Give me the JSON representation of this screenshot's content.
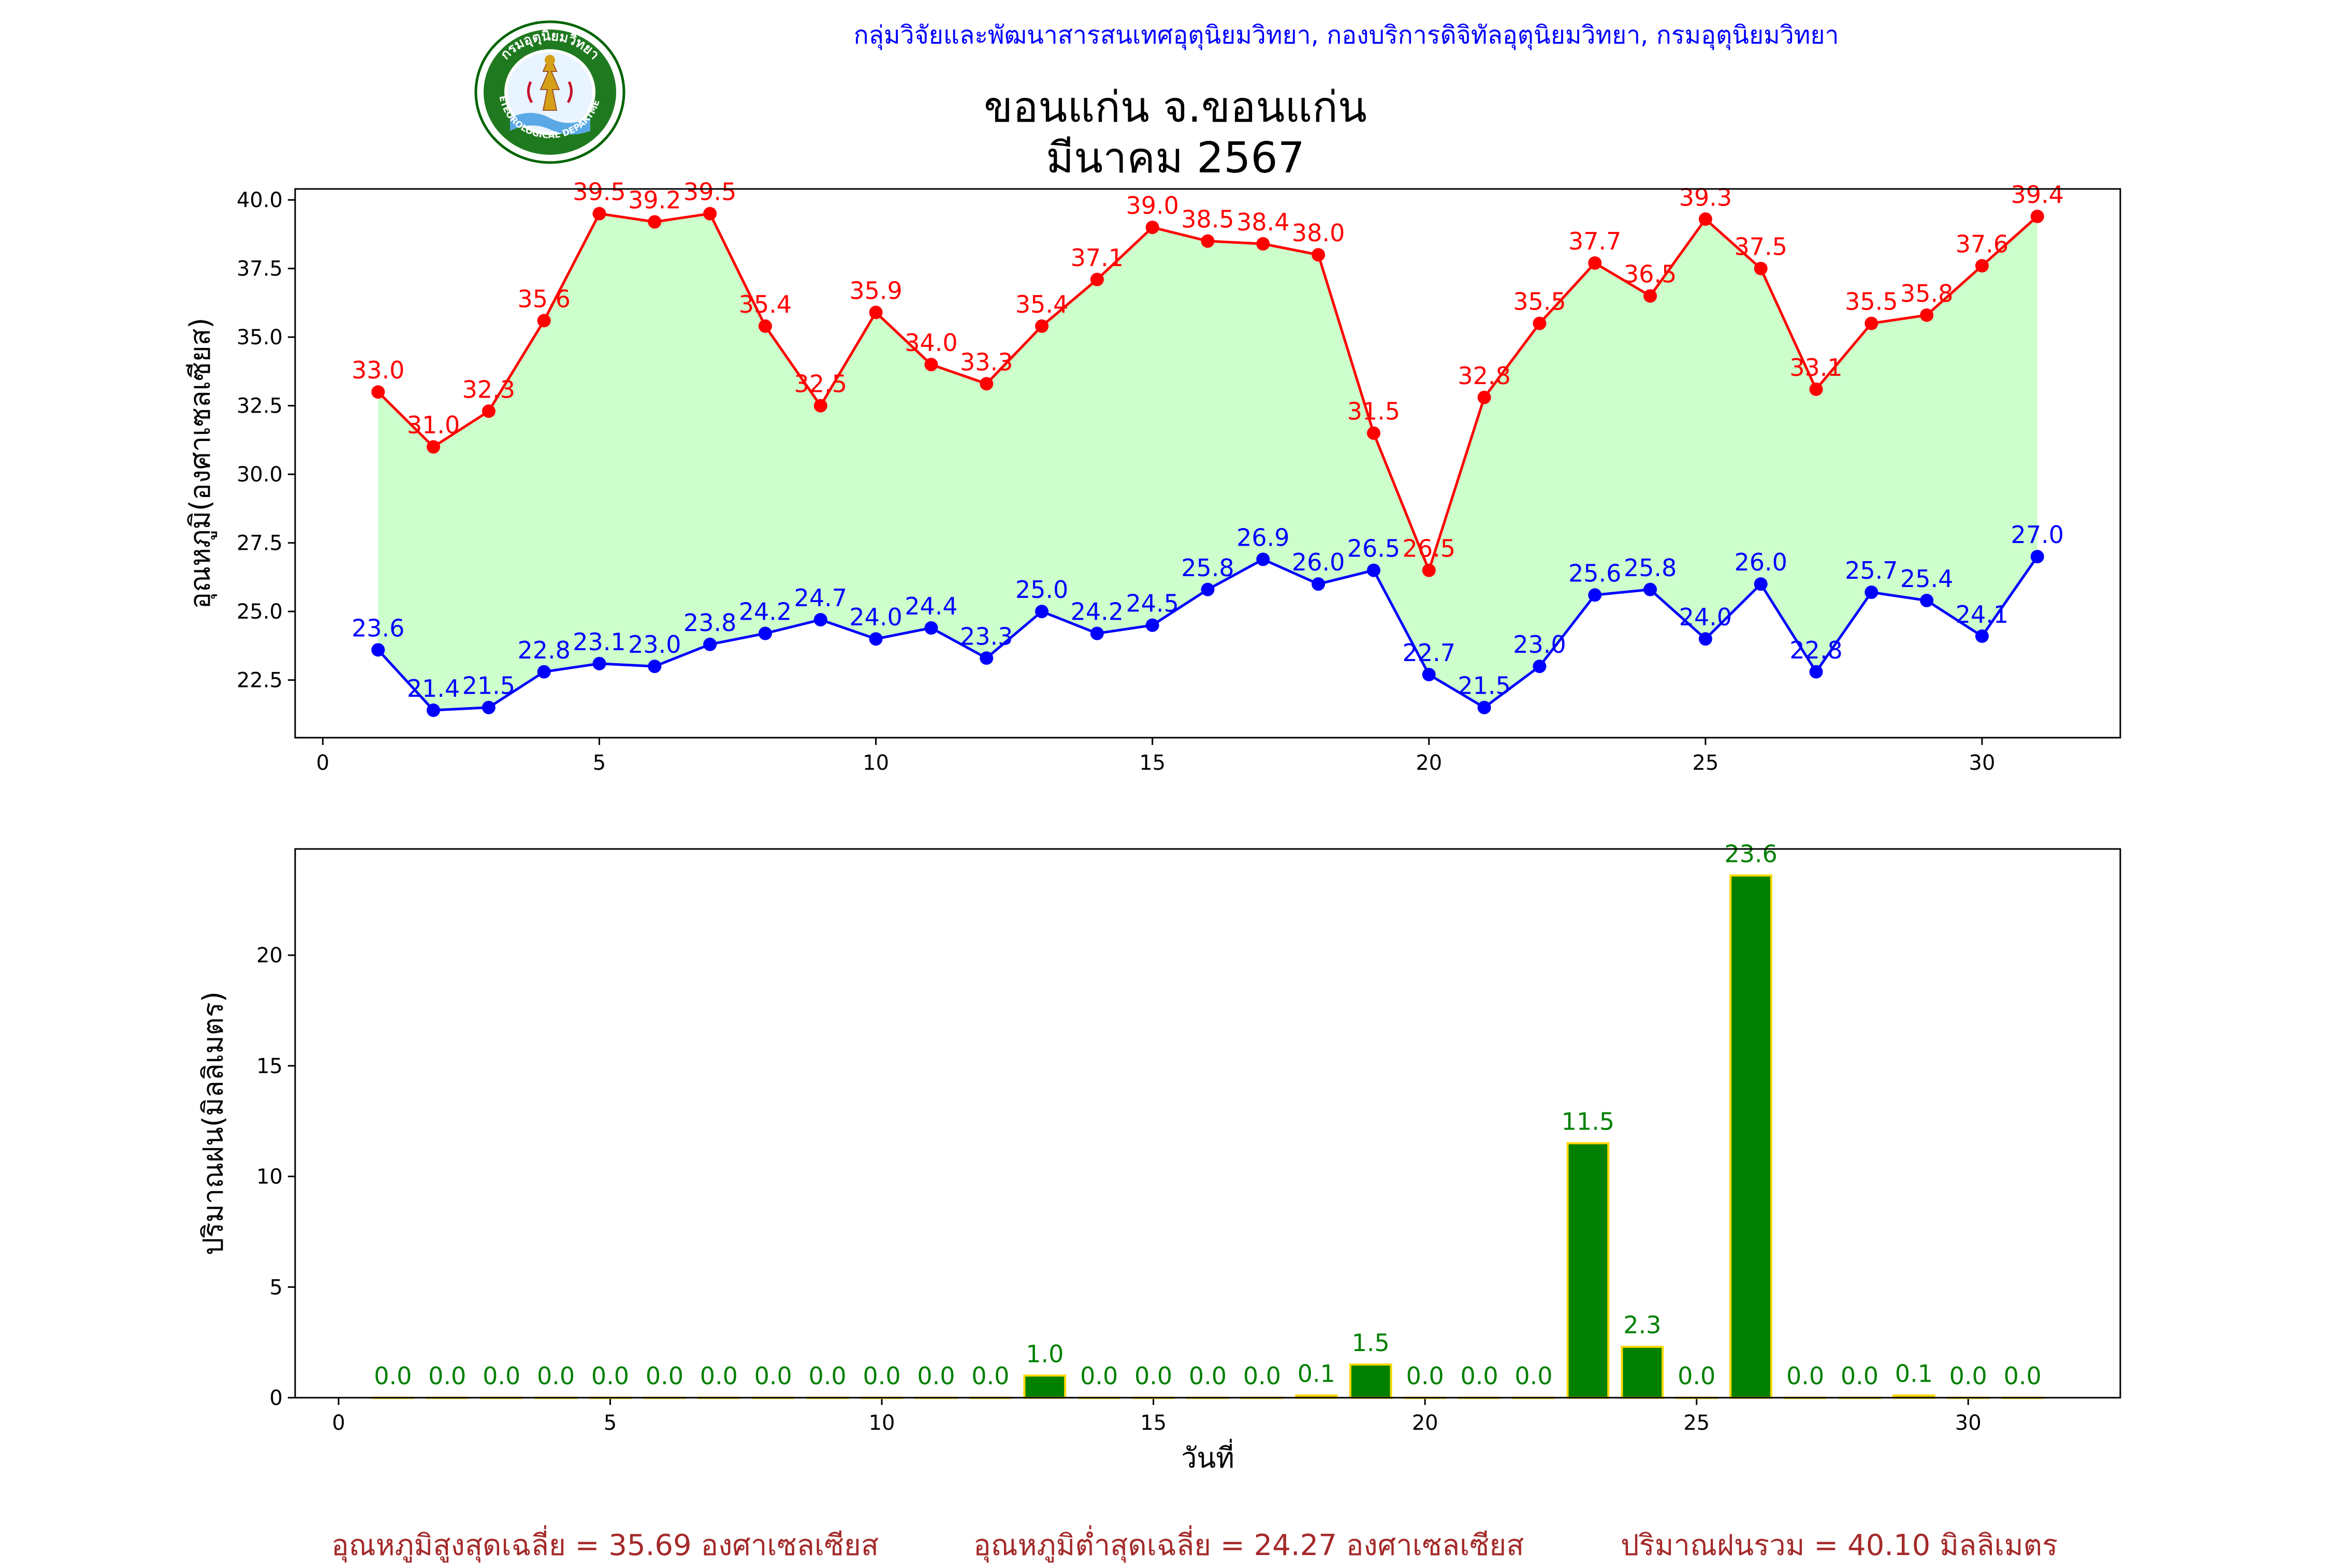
{
  "header": {
    "department_line": "กลุ่มวิจัยและพัฒนาสารสนเทศอุตุนิยมวิทยา, กองบริการดิจิทัลอุตุนิยมวิทยา, กรมอุตุนิยมวิทยา",
    "station_title": "ขอนแก่น จ.ขอนแก่น",
    "month_title": "มีนาคม 2567",
    "logo_text_top": "กรมอุตุนิยมวิทยา",
    "logo_text_bottom": "METEOROLOGICAL DEPARTMENT"
  },
  "chart_data": [
    {
      "type": "line",
      "ylabel": "อุณหภูมิ(องศาเซลเซียส)",
      "xlabel": "",
      "x": [
        1,
        2,
        3,
        4,
        5,
        6,
        7,
        8,
        9,
        10,
        11,
        12,
        13,
        14,
        15,
        16,
        17,
        18,
        19,
        20,
        21,
        22,
        23,
        24,
        25,
        26,
        27,
        28,
        29,
        30,
        31
      ],
      "xlim": [
        -0.5,
        32.5
      ],
      "ylim": [
        20.4,
        40.4
      ],
      "xticks": [
        "0",
        "5",
        "10",
        "15",
        "20",
        "25",
        "30"
      ],
      "yticks": [
        "22.5",
        "25.0",
        "27.5",
        "30.0",
        "32.5",
        "35.0",
        "37.5",
        "40.0"
      ],
      "fill_between": {
        "color": "#ccffcc"
      },
      "series": [
        {
          "role": "max",
          "color": "#ff0000",
          "values": [
            33.0,
            31.0,
            32.3,
            35.6,
            39.5,
            39.2,
            39.5,
            35.4,
            32.5,
            35.9,
            34.0,
            33.3,
            35.4,
            37.1,
            39.0,
            38.5,
            38.4,
            38.0,
            31.5,
            26.5,
            32.8,
            35.5,
            37.7,
            36.5,
            39.3,
            37.5,
            33.1,
            35.5,
            35.8,
            37.6,
            39.4
          ],
          "labels": [
            "33.0",
            "31.0",
            "32.3",
            "35.6",
            "39.5",
            "39.2",
            "39.5",
            "35.4",
            "32.5",
            "35.9",
            "34.0",
            "33.3",
            "35.4",
            "37.1",
            "39.0",
            "38.5",
            "38.4",
            "38.0",
            "31.5",
            "26.5",
            "32.8",
            "35.5",
            "37.7",
            "36.5",
            "39.3",
            "37.5",
            "33.1",
            "35.5",
            "35.8",
            "37.6",
            "39.4"
          ]
        },
        {
          "role": "min",
          "color": "#0000ff",
          "values": [
            23.6,
            21.4,
            21.5,
            22.8,
            23.1,
            23.0,
            23.8,
            24.2,
            24.7,
            24.0,
            24.4,
            23.3,
            25.0,
            24.2,
            24.5,
            25.8,
            26.9,
            26.0,
            26.5,
            22.7,
            21.5,
            23.0,
            25.6,
            25.8,
            24.0,
            26.0,
            22.8,
            25.7,
            25.4,
            24.1,
            27.0
          ],
          "labels": [
            "23.6",
            "21.4",
            "21.5",
            "22.8",
            "23.1",
            "23.0",
            "23.8",
            "24.2",
            "24.7",
            "24.0",
            "24.4",
            "23.3",
            "25.0",
            "24.2",
            "24.5",
            "25.8",
            "26.9",
            "26.0",
            "26.5",
            "22.7",
            "21.5",
            "23.0",
            "25.6",
            "25.8",
            "24.0",
            "26.0",
            "22.8",
            "25.7",
            "25.4",
            "24.1",
            "27.0"
          ]
        }
      ]
    },
    {
      "type": "bar",
      "ylabel": "ปริมาณฝน(มิลลิเมตร)",
      "xlabel": "วันที่",
      "x": [
        1,
        2,
        3,
        4,
        5,
        6,
        7,
        8,
        9,
        10,
        11,
        12,
        13,
        14,
        15,
        16,
        17,
        18,
        19,
        20,
        21,
        22,
        23,
        24,
        25,
        26,
        27,
        28,
        29,
        30,
        31
      ],
      "xlim": [
        -0.8,
        32.8
      ],
      "ylim": [
        0,
        24.8
      ],
      "xticks": [
        "0",
        "5",
        "10",
        "15",
        "20",
        "25",
        "30"
      ],
      "yticks": [
        "0",
        "5",
        "10",
        "15",
        "20"
      ],
      "bar_color": "#008000",
      "edge_color": "#ffd700",
      "label_color": "#008000",
      "values": [
        0.0,
        0.0,
        0.0,
        0.0,
        0.0,
        0.0,
        0.0,
        0.0,
        0.0,
        0.0,
        0.0,
        0.0,
        1.0,
        0.0,
        0.0,
        0.0,
        0.0,
        0.1,
        1.5,
        0.0,
        0.0,
        0.0,
        11.5,
        2.3,
        0.0,
        23.6,
        0.0,
        0.0,
        0.1,
        0.0,
        0.0
      ],
      "labels": [
        "0.0",
        "0.0",
        "0.0",
        "0.0",
        "0.0",
        "0.0",
        "0.0",
        "0.0",
        "0.0",
        "0.0",
        "0.0",
        "0.0",
        "1.0",
        "0.0",
        "0.0",
        "0.0",
        "0.0",
        "0.1",
        "1.5",
        "0.0",
        "0.0",
        "0.0",
        "11.5",
        "2.3",
        "0.0",
        "23.6",
        "0.0",
        "0.0",
        "0.1",
        "0.0",
        "0.0"
      ]
    }
  ],
  "footer": {
    "avg_max": "อุณหภูมิสูงสุดเฉลี่ย = 35.69 องศาเซลเซียส",
    "avg_min": "อุณหภูมิต่ำสุดเฉลี่ย = 24.27 องศาเซลเซียส",
    "rain_total": "ปริมาณฝนรวม = 40.10 มิลลิเมตร"
  }
}
